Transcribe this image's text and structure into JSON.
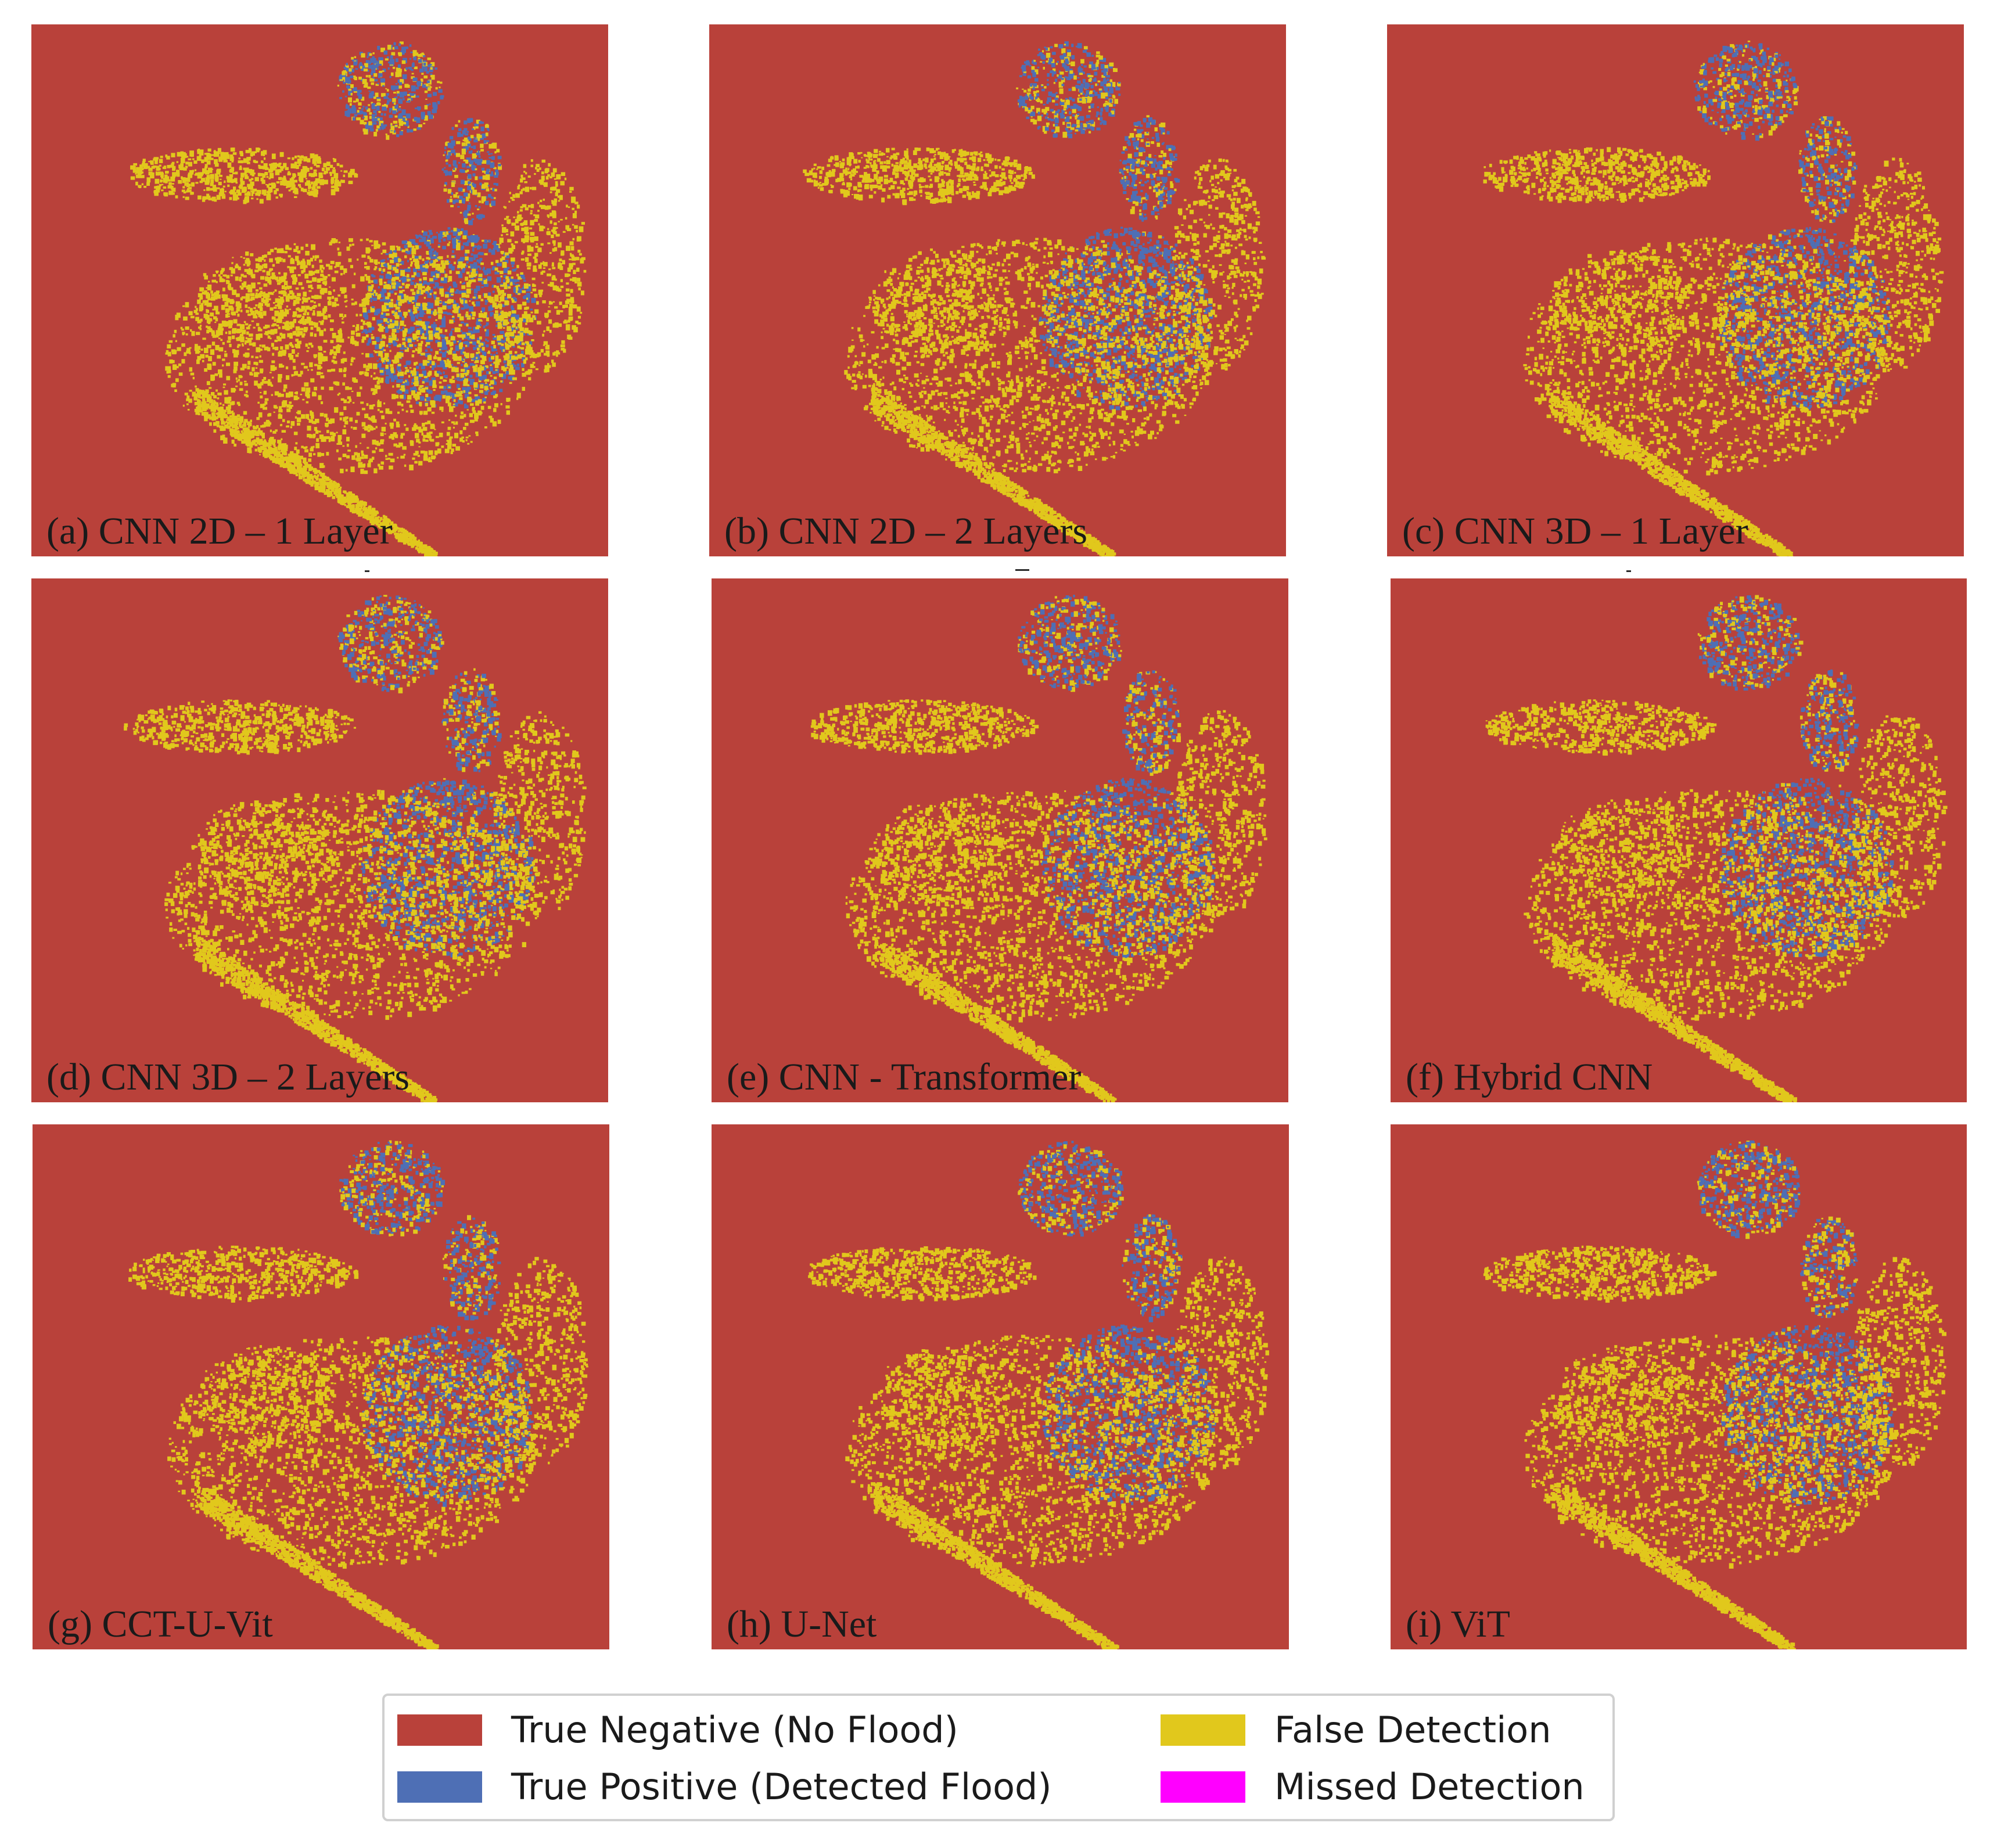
{
  "colors": {
    "true_negative": "#b9413a",
    "true_positive": "#4e6fb5",
    "false_detection": "#e1c81c",
    "missed_detection": "#ff00ff"
  },
  "panels": [
    {
      "caption": "(a) CNN 2D – 1 Layer"
    },
    {
      "caption": "(b) CNN 2D – 2 Layers"
    },
    {
      "caption": "(c) CNN 3D – 1 Layer"
    },
    {
      "caption": "(d) CNN 3D – 2 Layers"
    },
    {
      "caption": "(e) CNN - Transformer"
    },
    {
      "caption": "(f) Hybrid CNN"
    },
    {
      "caption": "(g) CCT-U-Vit"
    },
    {
      "caption": "(h) U-Net"
    },
    {
      "caption": "(i) ViT"
    }
  ],
  "legend": {
    "items": [
      {
        "label": "True Negative (No Flood)",
        "color_key": "true_negative"
      },
      {
        "label": "False Detection",
        "color_key": "false_detection"
      },
      {
        "label": "True Positive (Detected Flood)",
        "color_key": "true_positive"
      },
      {
        "label": "Missed Detection",
        "color_key": "missed_detection"
      }
    ]
  }
}
